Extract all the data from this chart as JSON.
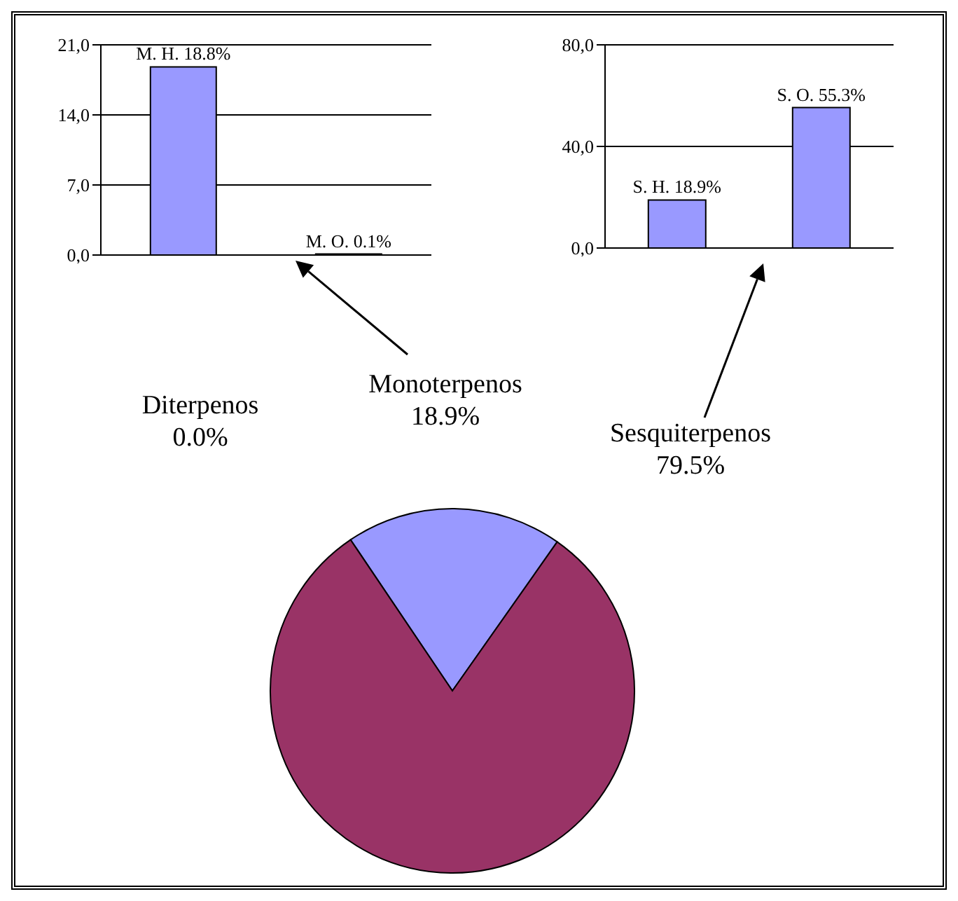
{
  "chart_data": [
    {
      "type": "bar",
      "categories": [
        null,
        null
      ],
      "values": [
        18.8,
        0.1
      ],
      "color": "#9999ff",
      "value_labels": [
        "M. H. 18.8%",
        "M. O. 0.1%"
      ],
      "ylim": [
        0,
        21
      ],
      "yticks": [
        {
          "value": 0,
          "label": "0,0"
        },
        {
          "value": 7,
          "label": "7,0"
        },
        {
          "value": 14,
          "label": "14,0"
        },
        {
          "value": 21,
          "label": "21,0"
        }
      ],
      "grid": "y"
    },
    {
      "type": "bar",
      "categories": [
        null,
        null
      ],
      "values": [
        18.9,
        55.3
      ],
      "color": "#9999ff",
      "value_labels": [
        "S. H. 18.9%",
        "S. O. 55.3%"
      ],
      "ylim": [
        0,
        80
      ],
      "yticks": [
        {
          "value": 0,
          "label": "0,0"
        },
        {
          "value": 40,
          "label": "40,0"
        },
        {
          "value": 80,
          "label": "80,0"
        }
      ],
      "grid": "y"
    },
    {
      "type": "pie",
      "categories": [
        "Diterpenos",
        "Monoterpenos",
        "Sesquiterpenos"
      ],
      "values": [
        0.0,
        18.9,
        79.5
      ],
      "colors": [
        "#ffffcc",
        "#9999ff",
        "#993366"
      ],
      "value_labels": [
        "0.0%",
        "18.9%",
        "79.5%"
      ]
    }
  ]
}
